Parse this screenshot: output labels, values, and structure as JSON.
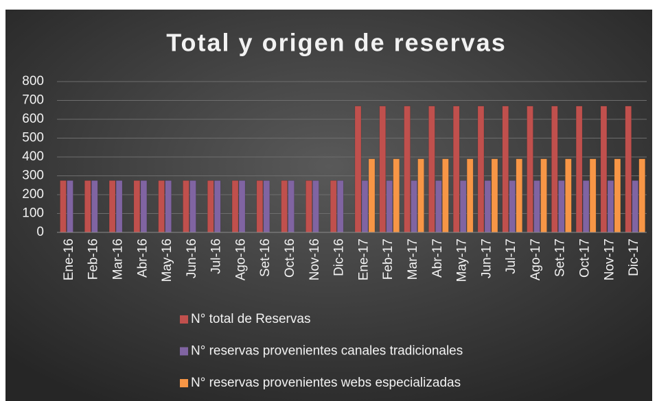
{
  "chart_data": {
    "type": "bar",
    "title": "Total y origen de reservas",
    "categories": [
      "Ene-16",
      "Feb-16",
      "Mar-16",
      "Abr-16",
      "May-16",
      "Jun-16",
      "Jul-16",
      "Ago-16",
      "Set-16",
      "Oct-16",
      "Nov-16",
      "Dic-16",
      "Ene-17",
      "Feb-17",
      "Mar-17",
      "Abr-17",
      "May-17",
      "Jun-17",
      "Jul-17",
      "Ago-17",
      "Set-17",
      "Oct-17",
      "Nov-17",
      "Dic-17"
    ],
    "series": [
      {
        "name": "N° total de Reservas",
        "color": "#c0504d",
        "values": [
          275,
          275,
          275,
          275,
          275,
          275,
          275,
          275,
          275,
          275,
          275,
          275,
          670,
          670,
          670,
          670,
          670,
          670,
          670,
          670,
          670,
          670,
          670,
          670
        ]
      },
      {
        "name": "N° reservas provenientes canales tradicionales",
        "color": "#8064a2",
        "values": [
          275,
          275,
          275,
          275,
          275,
          275,
          275,
          275,
          275,
          275,
          275,
          275,
          275,
          275,
          275,
          275,
          275,
          275,
          275,
          275,
          275,
          275,
          275,
          275
        ]
      },
      {
        "name": "N° reservas provenientes webs especializadas",
        "color": "#f79646",
        "values": [
          0,
          0,
          0,
          0,
          0,
          0,
          0,
          0,
          0,
          0,
          0,
          0,
          390,
          390,
          390,
          390,
          390,
          390,
          390,
          390,
          390,
          390,
          390,
          390
        ]
      }
    ],
    "ylim": [
      0,
      800
    ],
    "yticks": [
      0,
      100,
      200,
      300,
      400,
      500,
      600,
      700,
      800
    ],
    "grid": true,
    "legend": "bottom"
  }
}
